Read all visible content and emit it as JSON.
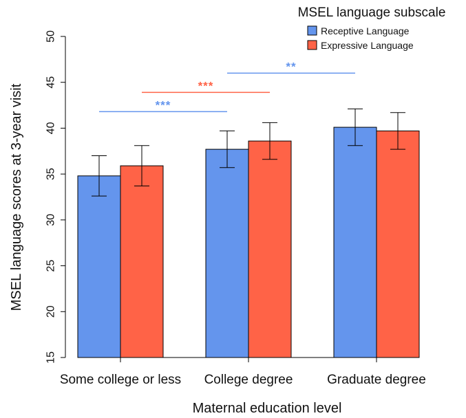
{
  "chart_data": {
    "type": "bar",
    "title": "",
    "xlabel": "Maternal education level",
    "ylabel": "MSEL language scores at 3-year visit",
    "ylim": [
      15,
      50
    ],
    "yticks": [
      "15",
      "20",
      "25",
      "30",
      "35",
      "40",
      "45",
      "50"
    ],
    "categories": [
      "Some college or less",
      "College degree",
      "Graduate degree"
    ],
    "legend": {
      "title": "MSEL language subscale",
      "position": "top-right"
    },
    "grid": false,
    "series": [
      {
        "name": "Receptive Language",
        "color": "#6495ED",
        "values": [
          34.8,
          37.7,
          40.1
        ],
        "error": [
          2.2,
          2.0,
          2.0
        ]
      },
      {
        "name": "Expressive Language",
        "color": "#FF6347",
        "values": [
          35.9,
          38.6,
          39.7
        ],
        "error": [
          2.2,
          2.0,
          2.0
        ]
      }
    ],
    "annotations": [
      {
        "text": "***",
        "color": "#6495ED",
        "from_category": 0,
        "to_category": 1,
        "series": "Receptive Language",
        "y": 41.8
      },
      {
        "text": "***",
        "color": "#FF6347",
        "from_category": 0,
        "to_category": 1,
        "series": "Expressive Language",
        "y": 43.9
      },
      {
        "text": "**",
        "color": "#6495ED",
        "from_category": 1,
        "to_category": 2,
        "series": "Receptive Language",
        "y": 46.0
      }
    ]
  }
}
